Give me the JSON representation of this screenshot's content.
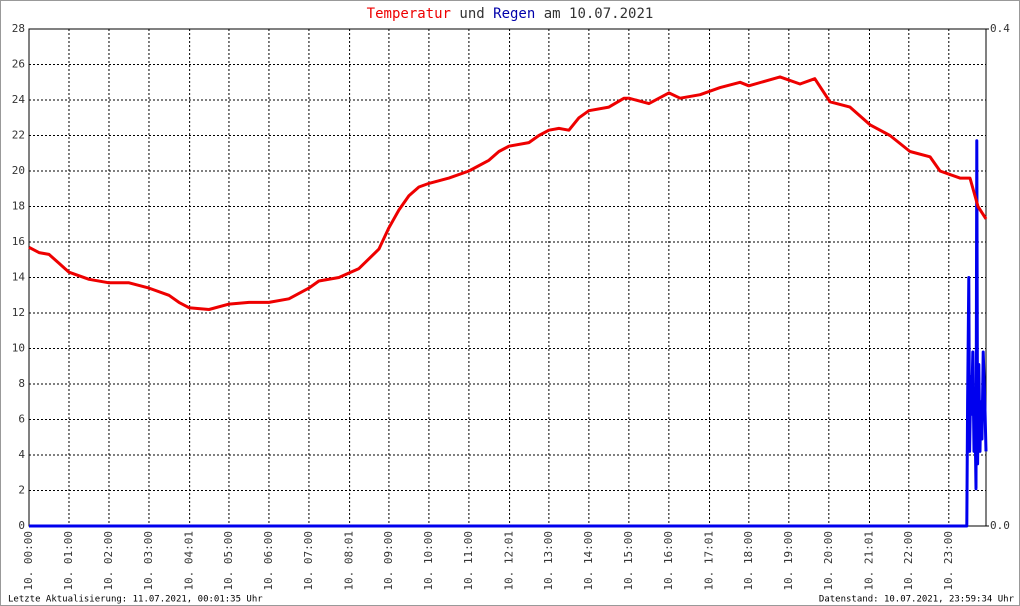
{
  "chart_data": {
    "type": "line",
    "title": "am 10.07.2021",
    "title_joiner": "und",
    "footer_left": "Letzte Aktualisierung: 11.07.2021, 00:01:35 Uhr",
    "footer_right": "Datenstand: 10.07.2021, 23:59:34 Uhr",
    "xlim": [
      0,
      23.93
    ],
    "xticks": [
      {
        "value": 0,
        "label": "10. 00:00"
      },
      {
        "value": 1,
        "label": "10. 01:00"
      },
      {
        "value": 2,
        "label": "10. 02:00"
      },
      {
        "value": 3,
        "label": "10. 03:00"
      },
      {
        "value": 4.0167,
        "label": "10. 04:01"
      },
      {
        "value": 5,
        "label": "10. 05:00"
      },
      {
        "value": 6,
        "label": "10. 06:00"
      },
      {
        "value": 7,
        "label": "10. 07:00"
      },
      {
        "value": 8.0167,
        "label": "10. 08:01"
      },
      {
        "value": 9,
        "label": "10. 09:00"
      },
      {
        "value": 10,
        "label": "10. 10:00"
      },
      {
        "value": 11,
        "label": "10. 11:00"
      },
      {
        "value": 12.0167,
        "label": "10. 12:01"
      },
      {
        "value": 13,
        "label": "10. 13:00"
      },
      {
        "value": 14,
        "label": "10. 14:00"
      },
      {
        "value": 15,
        "label": "10. 15:00"
      },
      {
        "value": 16,
        "label": "10. 16:00"
      },
      {
        "value": 17.0167,
        "label": "10. 17:01"
      },
      {
        "value": 18,
        "label": "10. 18:00"
      },
      {
        "value": 19,
        "label": "10. 19:00"
      },
      {
        "value": 20,
        "label": "10. 20:00"
      },
      {
        "value": 21.0167,
        "label": "10. 21:01"
      },
      {
        "value": 22,
        "label": "10. 22:00"
      },
      {
        "value": 23,
        "label": "10. 23:00"
      }
    ],
    "ylim": [
      0,
      28
    ],
    "yticks": [
      0,
      2,
      4,
      6,
      8,
      10,
      12,
      14,
      16,
      18,
      20,
      22,
      24,
      26,
      28
    ],
    "y2lim": [
      0,
      0.4
    ],
    "y2ticks": [
      {
        "value": 0,
        "label": "0.0"
      },
      0.4
    ],
    "grid": true,
    "series": [
      {
        "name": "Temperatur",
        "color": "#ee0000",
        "x": [
          0,
          0.25,
          0.5,
          0.75,
          1,
          1.5,
          2,
          2.5,
          3,
          3.5,
          3.75,
          4,
          4.5,
          5,
          5.5,
          6,
          6.5,
          7,
          7.25,
          7.75,
          8.25,
          8.75,
          9,
          9.25,
          9.5,
          9.75,
          10,
          10.5,
          11,
          11.5,
          11.75,
          12,
          12.5,
          12.75,
          13,
          13.25,
          13.5,
          13.75,
          14,
          14.5,
          14.88,
          15,
          15.5,
          16,
          16.28,
          16.78,
          17.28,
          17.78,
          18,
          18.78,
          19.28,
          19.65,
          20.03,
          20.53,
          21.03,
          21.53,
          22.03,
          22.53,
          22.78,
          23.28,
          23.53,
          23.73,
          23.93
        ],
        "values": [
          15.7,
          15.4,
          15.3,
          14.8,
          14.3,
          13.9,
          13.7,
          13.7,
          13.4,
          13.0,
          12.6,
          12.3,
          12.2,
          12.5,
          12.6,
          12.6,
          12.8,
          13.4,
          13.8,
          14.0,
          14.5,
          15.6,
          16.8,
          17.8,
          18.6,
          19.1,
          19.3,
          19.6,
          20.0,
          20.6,
          21.1,
          21.4,
          21.6,
          22.0,
          22.3,
          22.4,
          22.3,
          23.0,
          23.4,
          23.6,
          24.1,
          24.1,
          23.8,
          24.4,
          24.1,
          24.3,
          24.7,
          25.0,
          24.8,
          25.3,
          24.9,
          25.2,
          23.9,
          23.6,
          22.6,
          22.0,
          21.1,
          20.8,
          20.0,
          19.6,
          19.6,
          18.0,
          17.3
        ]
      },
      {
        "name": "Regen",
        "color": "#0000ee",
        "axis": "y2",
        "x": [
          0,
          23.45,
          23.47,
          23.5,
          23.52,
          23.55,
          23.57,
          23.6,
          23.63,
          23.65,
          23.68,
          23.7,
          23.72,
          23.75,
          23.78,
          23.8,
          23.83,
          23.86,
          23.9,
          23.93
        ],
        "values": [
          0,
          0,
          0.1,
          0.2,
          0.06,
          0.12,
          0.09,
          0.14,
          0.06,
          0.1,
          0.03,
          0.31,
          0.05,
          0.13,
          0.06,
          0.1,
          0.07,
          0.14,
          0.1,
          0.06
        ]
      }
    ]
  }
}
